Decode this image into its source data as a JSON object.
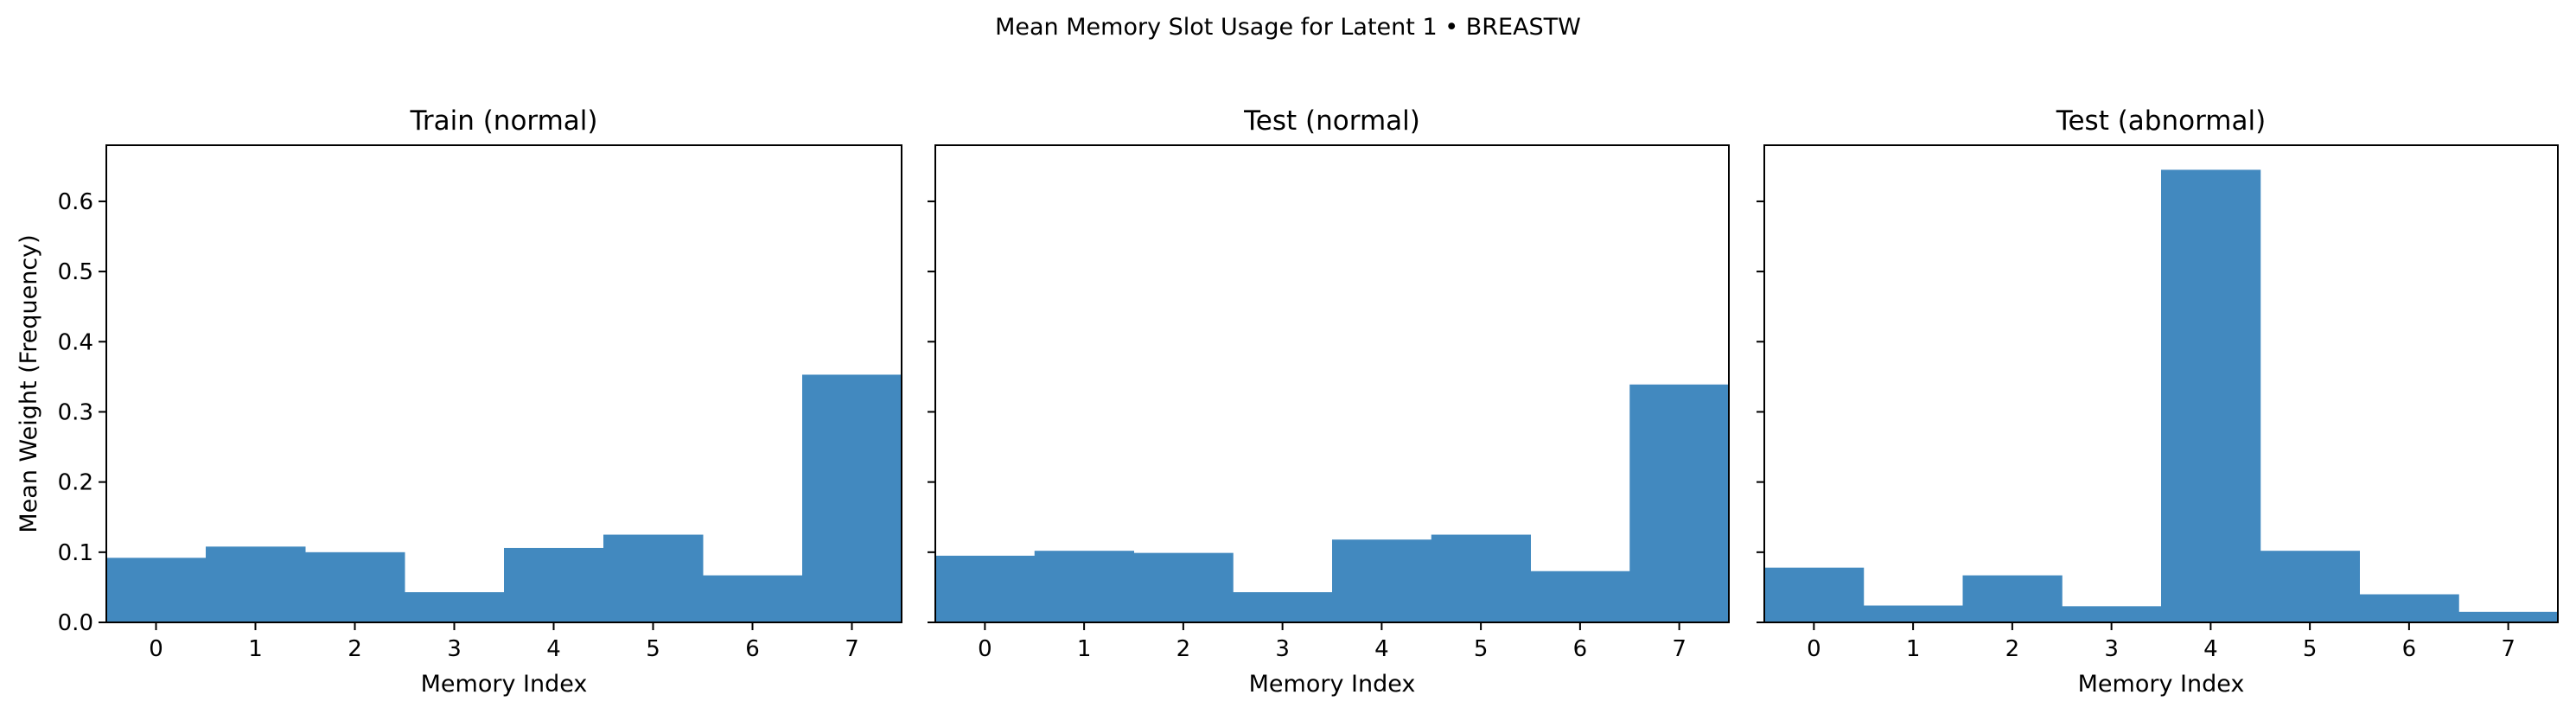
{
  "suptitle": "Mean Memory Slot Usage for Latent 1 • BREASTW",
  "colors": {
    "bar": "#4289bf",
    "axis": "#000000",
    "background": "#ffffff"
  },
  "chart_data": [
    {
      "type": "bar",
      "title": "Train (normal)",
      "xlabel": "Memory Index",
      "ylabel": "Mean Weight (Frequency)",
      "categories": [
        "0",
        "1",
        "2",
        "3",
        "4",
        "5",
        "6",
        "7"
      ],
      "values": [
        0.092,
        0.108,
        0.1,
        0.043,
        0.106,
        0.125,
        0.067,
        0.353
      ],
      "ylim": [
        0,
        0.68
      ],
      "yticks": [
        "0.0",
        "0.1",
        "0.2",
        "0.3",
        "0.4",
        "0.5",
        "0.6"
      ],
      "grid": false
    },
    {
      "type": "bar",
      "title": "Test (normal)",
      "xlabel": "Memory Index",
      "ylabel": "",
      "categories": [
        "0",
        "1",
        "2",
        "3",
        "4",
        "5",
        "6",
        "7"
      ],
      "values": [
        0.095,
        0.102,
        0.099,
        0.043,
        0.118,
        0.125,
        0.073,
        0.339
      ],
      "ylim": [
        0,
        0.68
      ],
      "yticks": [
        "0.0",
        "0.1",
        "0.2",
        "0.3",
        "0.4",
        "0.5",
        "0.6"
      ],
      "grid": false
    },
    {
      "type": "bar",
      "title": "Test (abnormal)",
      "xlabel": "Memory Index",
      "ylabel": "",
      "categories": [
        "0",
        "1",
        "2",
        "3",
        "4",
        "5",
        "6",
        "7"
      ],
      "values": [
        0.078,
        0.024,
        0.067,
        0.023,
        0.645,
        0.102,
        0.04,
        0.015
      ],
      "ylim": [
        0,
        0.68
      ],
      "yticks": [
        "0.0",
        "0.1",
        "0.2",
        "0.3",
        "0.4",
        "0.5",
        "0.6"
      ],
      "grid": false
    }
  ]
}
